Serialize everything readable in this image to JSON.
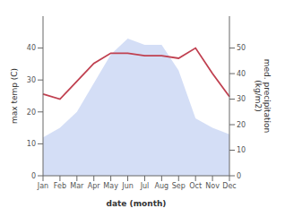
{
  "chart_data": {
    "type": "area",
    "xlabel": "date (month)",
    "ylabel": "max temp (C)",
    "y2label": "med. precipitation\n(kg/m2)",
    "categories": [
      "Jan",
      "Feb",
      "Mar",
      "Apr",
      "May",
      "Jun",
      "Jul",
      "Aug",
      "Sep",
      "Oct",
      "Nov",
      "Dec"
    ],
    "series": [
      {
        "type": "area",
        "color": "#b8c8f0",
        "values": [
          12,
          15,
          20,
          29,
          38,
          43,
          41,
          41,
          33,
          18,
          15,
          13
        ]
      },
      {
        "type": "line",
        "color": "#c04050",
        "axis": "y2",
        "values": [
          32,
          30,
          37,
          44,
          48,
          48,
          47,
          47,
          46,
          50,
          40,
          31
        ]
      }
    ],
    "ylim": [
      0,
      50
    ],
    "yticks": [
      0,
      10,
      20,
      30,
      40
    ],
    "y2lim": [
      0,
      62.5
    ],
    "y2ticks": [
      0,
      10,
      20,
      30,
      40,
      50
    ],
    "grid": false
  }
}
